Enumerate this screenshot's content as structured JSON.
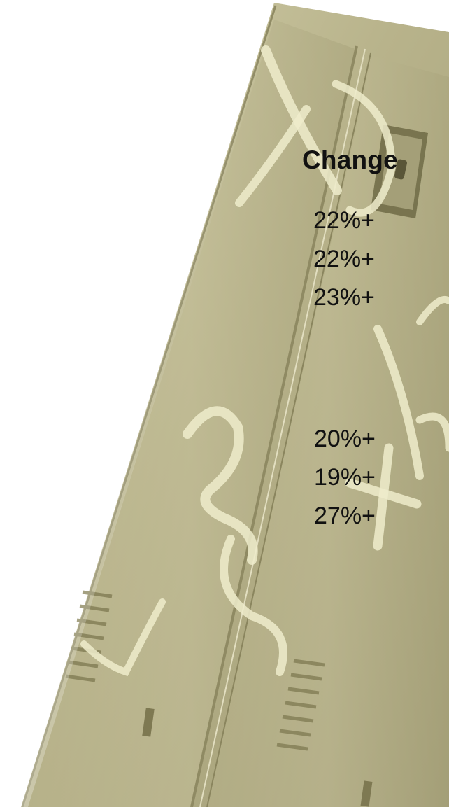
{
  "header": {
    "label": "Change"
  },
  "rows": [
    {
      "value": "22%+"
    },
    {
      "value": "22%+"
    },
    {
      "value": "23%+"
    },
    {
      "value": "20%+"
    },
    {
      "value": "19%+"
    },
    {
      "value": "27%+"
    }
  ],
  "colors": {
    "locker": "#b8b38b",
    "locker_dark": "#8f8a63",
    "chalk": "#efeccb"
  }
}
